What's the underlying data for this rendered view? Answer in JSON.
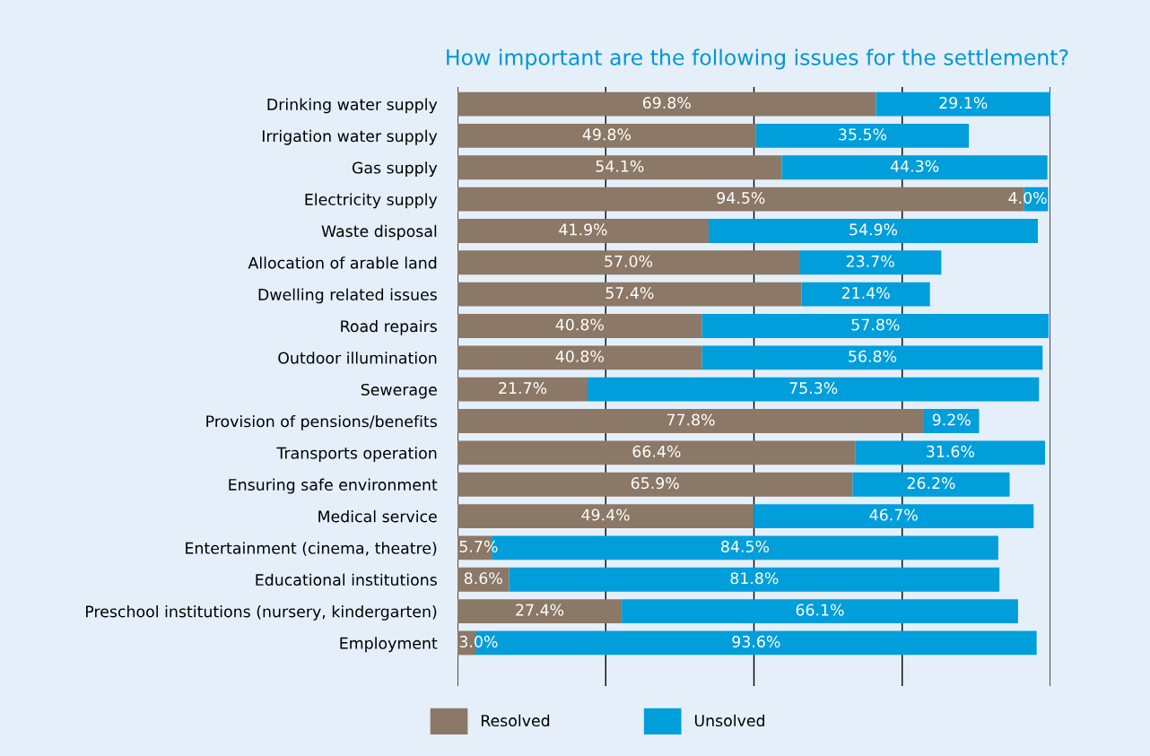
{
  "chart_data": {
    "type": "bar",
    "orientation": "horizontal",
    "stacked": true,
    "title": "How important are the following issues for the settlement?",
    "categories": [
      "Drinking water supply",
      "Irrigation water supply",
      "Gas supply",
      "Electricity supply",
      "Waste disposal",
      "Allocation of arable land",
      "Dwelling related issues",
      "Road repairs",
      "Outdoor illumination",
      "Sewerage",
      "Provision of pensions/benefits",
      "Transports operation",
      "Ensuring safe environment",
      "Medical service",
      "Entertainment (cinema, theatre)",
      "Educational institutions",
      "Preschool institutions (nursery, kindergarten)",
      "Employment"
    ],
    "series": [
      {
        "name": "Resolved",
        "color": "#8b7866",
        "values": [
          69.8,
          49.8,
          54.1,
          94.5,
          41.9,
          57.0,
          57.4,
          40.8,
          40.8,
          21.7,
          77.8,
          66.4,
          65.9,
          49.4,
          5.7,
          8.6,
          27.4,
          3.0
        ],
        "value_labels": [
          "69.8%",
          "49.8%",
          "54.1%",
          "94.5%",
          "41.9%",
          "57.0%",
          "57.4%",
          "40.8%",
          "40.8%",
          "21.7%",
          "77.8%",
          "66.4%",
          "65.9%",
          "49.4%",
          "5.7%",
          "8.6%",
          "27.4%",
          "3.0%"
        ]
      },
      {
        "name": "Unsolved",
        "color": "#009edb",
        "values": [
          29.1,
          35.5,
          44.3,
          4.0,
          54.9,
          23.7,
          21.4,
          57.8,
          56.8,
          75.3,
          9.2,
          31.6,
          26.2,
          46.7,
          84.5,
          81.8,
          66.1,
          93.6
        ],
        "value_labels": [
          "29.1%",
          "35.5%",
          "44.3%",
          "4.0%",
          "54.9%",
          "23.7%",
          "21.4%",
          "57.8%",
          "56.8%",
          "75.3%",
          "9.2%",
          "31.6%",
          "26.2%",
          "46.7%",
          "84.5%",
          "81.8%",
          "66.1%",
          "93.6%"
        ]
      }
    ],
    "tick_labels": "y",
    "grid": "x",
    "legend": "bottom"
  }
}
